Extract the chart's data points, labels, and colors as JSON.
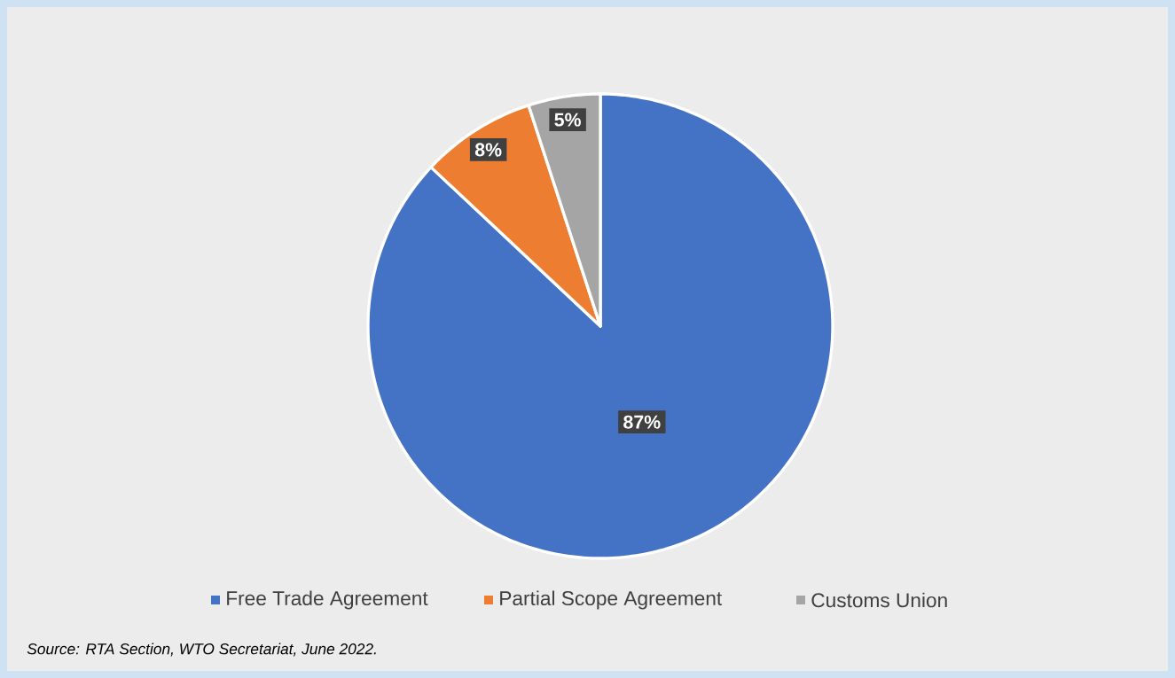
{
  "chart_data": {
    "type": "pie",
    "categories": [
      "Free Trade Agreement",
      "Partial Scope Agreement",
      "Customs Union"
    ],
    "values": [
      87,
      8,
      5
    ],
    "colors": [
      "#4472c4",
      "#ed7d31",
      "#a5a5a5"
    ],
    "value_labels": [
      "87%",
      "8%",
      "5%"
    ],
    "legend": "bottom",
    "annotations": [
      "Source: RTA Section, WTO Secretariat, June 2022."
    ]
  }
}
